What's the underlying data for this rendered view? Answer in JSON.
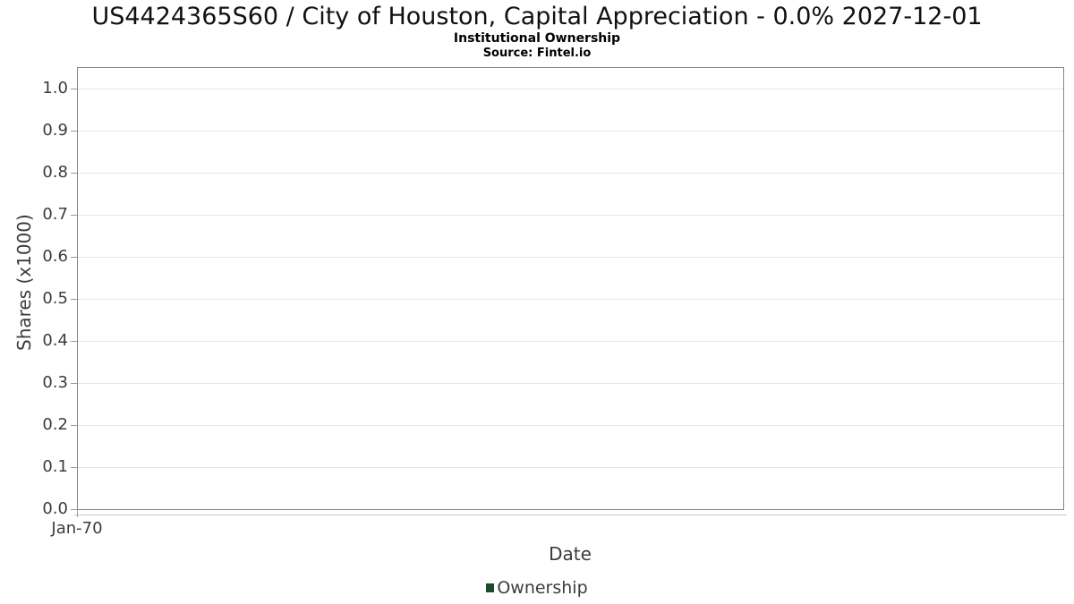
{
  "header": {
    "title": "US4424365S60 / City of Houston, Capital Appreciation - 0.0% 2027-12-01",
    "subtitle": "Institutional Ownership",
    "source": "Source: Fintel.io"
  },
  "chart_data": {
    "type": "line",
    "title": "US4424365S60 / City of Houston, Capital Appreciation - 0.0% 2027-12-01",
    "subtitle": "Institutional Ownership",
    "source_text": "Source: Fintel.io",
    "xlabel": "Date",
    "ylabel": "Shares (x1000)",
    "x_ticks": [
      "Jan-70"
    ],
    "y_ticks": [
      "0.0",
      "0.1",
      "0.2",
      "0.3",
      "0.4",
      "0.5",
      "0.6",
      "0.7",
      "0.8",
      "0.9",
      "1.0"
    ],
    "ylim": [
      0,
      1.05
    ],
    "grid": true,
    "legend_position": "bottom",
    "series": [
      {
        "name": "Ownership",
        "color": "#1d4b2c",
        "x": [],
        "values": []
      }
    ],
    "colors": {
      "axis_border": "#848484",
      "gridline": "#e6e6e6",
      "tick_text": "#3c3c3c",
      "legend_swatch": "#1d4b2c"
    }
  }
}
